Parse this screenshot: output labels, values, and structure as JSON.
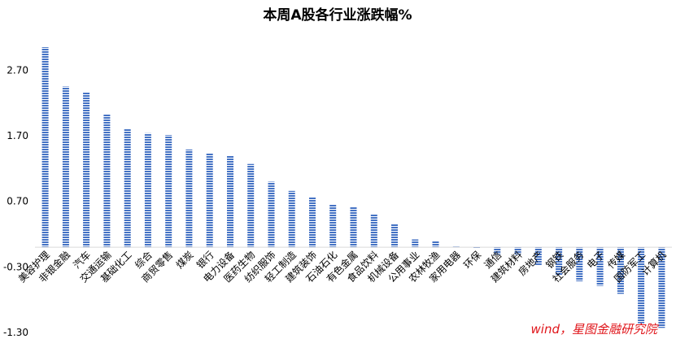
{
  "chart_data": {
    "type": "bar",
    "title": "本周A股各行业涨跌幅%",
    "categories": [
      "美容护理",
      "非银金融",
      "汽车",
      "交通运输",
      "基础化工",
      "综合",
      "商贸零售",
      "煤炭",
      "银行",
      "电力设备",
      "医药生物",
      "纺织服饰",
      "轻工制造",
      "建筑装饰",
      "石油石化",
      "有色金属",
      "食品饮料",
      "机械设备",
      "公用事业",
      "农林牧渔",
      "家用电器",
      "环保",
      "通信",
      "建筑材料",
      "房地产",
      "钢铁",
      "社会服务",
      "电子",
      "传媒",
      "国防军工",
      "计算机"
    ],
    "values": [
      3.05,
      2.45,
      2.36,
      2.03,
      1.81,
      1.74,
      1.71,
      1.49,
      1.43,
      1.4,
      1.27,
      1.0,
      0.86,
      0.76,
      0.65,
      0.61,
      0.5,
      0.35,
      0.12,
      0.09,
      0.01,
      -0.02,
      -0.11,
      -0.11,
      -0.27,
      -0.43,
      -0.52,
      -0.59,
      -0.71,
      -1.16,
      -1.23
    ],
    "ylim": [
      -1.3,
      3.2
    ],
    "yticks": [
      -1.3,
      -0.3,
      0.7,
      1.7,
      2.7
    ],
    "ytick_labels": [
      "-1.30",
      "-0.30",
      "0.70",
      "1.70",
      "2.70"
    ],
    "bar_color": "#4472c4",
    "grid": false,
    "xlabel": "",
    "ylabel": ""
  },
  "source_text": "wind，星图金融研究院"
}
